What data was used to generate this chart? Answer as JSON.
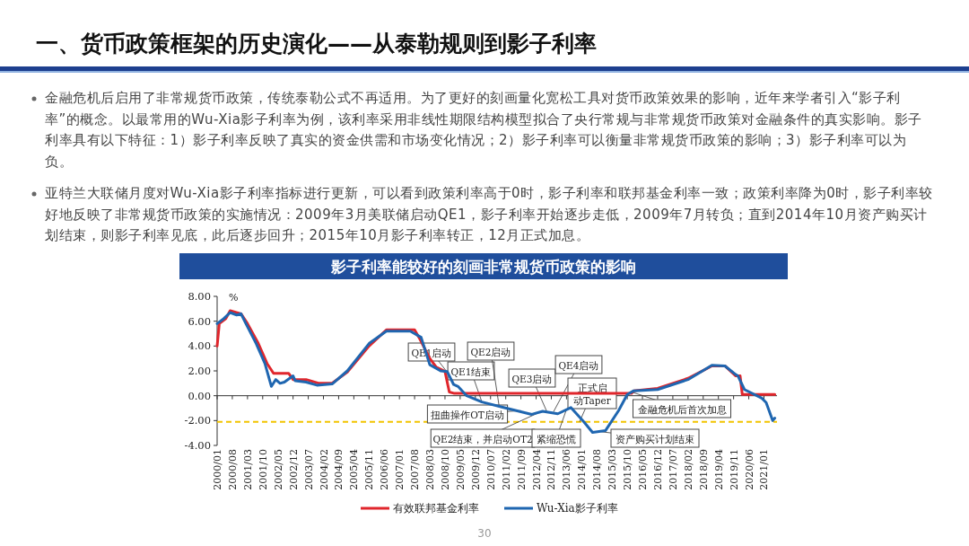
{
  "chart_data": {
    "type": "line",
    "title": "一、货币政策框架的历史演化——从泰勒规则到影子利率",
    "subtitle": "影子利率能较好的刻画非常规货币政策的影响",
    "ylabel": "%",
    "annotations": [
      "金融危机后启用了非常规货币政策，传统泰勒公式不再适用。为了更好的刻画量化宽松工具对货币政策效果的影响，近年来学者引入“影子利率”的概念。以最常用的Wu-Xia影子利率为例，该利率采用非线性期限结构模型拟合了央行常规与非常规货币政策对金融条件的真实影响。影子利率具有以下特征：1）影子利率反映了真实的资金供需和市场变化情况；2）影子利率可以衡量非常规货币政策的影响；3）影子利率可以为负。",
      "亚特兰大联储月度对Wu-Xia影子利率指标进行更新，可以看到政策利率高于0时，影子利率和联邦基金利率一致；政策利率降为0时，影子利率较好地反映了非常规货币政策的实施情况：2009年3月美联储启动QE1，影子利率开始逐步走低，2009年7月转负；直到2014年10月资产购买计划结束，则影子利率见底，此后逐步回升；2015年10月影子利率转正，12月正式加息。",
      "30",
      {
        "text": "QE1启动",
        "x": "2008-11",
        "y": 1.9
      },
      {
        "text": "QE1结束",
        "x": "2010-03",
        "y": -0.5
      },
      {
        "text": "QE2启动",
        "x": "2010-11",
        "y": -0.9
      },
      {
        "text": "QE3启动",
        "x": "2012-09",
        "y": -1.3
      },
      {
        "text": "QE4启动",
        "x": "2012-12",
        "y": -1.3
      },
      {
        "text": "正式启动Taper",
        "x": "2013-12",
        "y": -2.1
      },
      {
        "text": "扭曲操作OT启动",
        "x": "2011-09",
        "y": -1.2
      },
      {
        "text": "QE2结束，并启动OT2",
        "x": "2012-06",
        "y": -1.3
      },
      {
        "text": "紧缩恐慌",
        "x": "2013-06",
        "y": -1.1
      },
      {
        "text": "资产购买计划结束",
        "x": "2014-10",
        "y": -2.9
      },
      {
        "text": "金融危机后首次加息",
        "x": "2015-12",
        "y": 0.3
      }
    ],
    "xlim": [
      "2000-01",
      "2021-07"
    ],
    "xticks": [
      {
        "value": "2000-01",
        "label": "2000/01"
      },
      {
        "value": "2000-08",
        "label": "2000/08"
      },
      {
        "value": "2001-03",
        "label": "2001/03"
      },
      {
        "value": "2001-10",
        "label": "2001/10"
      },
      {
        "value": "2002-05",
        "label": "2002/05"
      },
      {
        "value": "2002-12",
        "label": "2002/12"
      },
      {
        "value": "2003-07",
        "label": "2003/07"
      },
      {
        "value": "2004-02",
        "label": "2004/02"
      },
      {
        "value": "2004-09",
        "label": "2004/09"
      },
      {
        "value": "2005-04",
        "label": "2005/04"
      },
      {
        "value": "2005-11",
        "label": "2005/11"
      },
      {
        "value": "2006-06",
        "label": "2006/06"
      },
      {
        "value": "2007-01",
        "label": "2007/01"
      },
      {
        "value": "2007-08",
        "label": "2007/08"
      },
      {
        "value": "2008-03",
        "label": "2008/03"
      },
      {
        "value": "2008-10",
        "label": "2008/10"
      },
      {
        "value": "2009-05",
        "label": "2009/05"
      },
      {
        "value": "2009-12",
        "label": "2009/12"
      },
      {
        "value": "2010-07",
        "label": "2010/07"
      },
      {
        "value": "2011-02",
        "label": "2011/02"
      },
      {
        "value": "2011-09",
        "label": "2011/09"
      },
      {
        "value": "2012-04",
        "label": "2012/04"
      },
      {
        "value": "2012-11",
        "label": "2012/11"
      },
      {
        "value": "2013-06",
        "label": "2013/06"
      },
      {
        "value": "2014-01",
        "label": "2014/01"
      },
      {
        "value": "2014-08",
        "label": "2014/08"
      },
      {
        "value": "2015-03",
        "label": "2015/03"
      },
      {
        "value": "2015-10",
        "label": "2015/10"
      },
      {
        "value": "2016-05",
        "label": "2016/05"
      },
      {
        "value": "2016-12",
        "label": "2016/12"
      },
      {
        "value": "2017-07",
        "label": "2017/07"
      },
      {
        "value": "2018-02",
        "label": "2018/02"
      },
      {
        "value": "2018-09",
        "label": "2018/09"
      },
      {
        "value": "2019-04",
        "label": "2019/04"
      },
      {
        "value": "2019-11",
        "label": "2019/11"
      },
      {
        "value": "2020-06",
        "label": "2020/06"
      },
      {
        "value": "2021-01",
        "label": "2021/01"
      }
    ],
    "ylim": [
      -4,
      8
    ],
    "yticks": [
      {
        "value": -4,
        "label": "-4.00"
      },
      {
        "value": -2,
        "label": "-2.00"
      },
      {
        "value": 0,
        "label": "0.00"
      },
      {
        "value": 2,
        "label": "2.00"
      },
      {
        "value": 4,
        "label": "4.00"
      },
      {
        "value": 6,
        "label": "6.00"
      },
      {
        "value": 8,
        "label": "8.00"
      }
    ],
    "ref_lines": [
      {
        "axis": "y",
        "value": -2.1,
        "color": "#f2c400",
        "line_style": "dashed"
      }
    ],
    "legend": "bottom",
    "grid": false,
    "line_style": "solid",
    "marker": "none",
    "series": [
      {
        "name": "有效联邦基金利率",
        "color": "#e0262c",
        "x": [
          "2000-01",
          "2000-02",
          "2000-05",
          "2000-07",
          "2000-12",
          "2001-03",
          "2001-08",
          "2001-12",
          "2002-03",
          "2002-10",
          "2002-12",
          "2003-06",
          "2003-12",
          "2004-06",
          "2005-01",
          "2005-11",
          "2006-07",
          "2007-08",
          "2007-10",
          "2008-03",
          "2008-06",
          "2008-10",
          "2008-12",
          "2009-02",
          "2015-12",
          "2016-01",
          "2016-12",
          "2018-02",
          "2019-01",
          "2019-07",
          "2019-12",
          "2020-02",
          "2020-03",
          "2021-06"
        ],
        "values": [
          4.0,
          5.8,
          6.2,
          6.85,
          6.6,
          5.8,
          4.2,
          2.6,
          1.8,
          1.8,
          1.3,
          1.3,
          1.0,
          1.0,
          1.9,
          4.0,
          5.3,
          5.3,
          4.7,
          3.0,
          2.3,
          1.95,
          0.3,
          0.2,
          0.2,
          0.4,
          0.6,
          1.4,
          2.4,
          2.4,
          1.6,
          1.6,
          0.1,
          0.1
        ]
      },
      {
        "name": "Wu-Xia影子利率",
        "color": "#1f66b0",
        "x": [
          "2000-01",
          "2000-04",
          "2000-07",
          "2000-10",
          "2000-12",
          "2001-02",
          "2001-07",
          "2001-11",
          "2002-02",
          "2002-04",
          "2002-06",
          "2002-08",
          "2002-12",
          "2003-01",
          "2003-06",
          "2003-11",
          "2004-06",
          "2005-01",
          "2005-11",
          "2006-07",
          "2007-06",
          "2007-11",
          "2008-03",
          "2008-08",
          "2008-11",
          "2009-02",
          "2009-04",
          "2009-08",
          "2010-03",
          "2011-01",
          "2012-02",
          "2012-07",
          "2013-02",
          "2013-08",
          "2014-02",
          "2014-06",
          "2014-12",
          "2015-06",
          "2015-10",
          "2016-01",
          "2016-12",
          "2018-02",
          "2019-01",
          "2019-07",
          "2019-12",
          "2020-01",
          "2020-04",
          "2020-12",
          "2021-02",
          "2021-05",
          "2021-06"
        ],
        "values": [
          5.8,
          6.2,
          6.7,
          6.5,
          6.6,
          5.9,
          4.2,
          2.6,
          0.75,
          1.3,
          1.0,
          1.1,
          1.6,
          1.2,
          1.1,
          0.85,
          0.95,
          2.0,
          4.2,
          5.2,
          5.2,
          4.7,
          2.5,
          2.0,
          1.95,
          0.9,
          0.75,
          0.0,
          -0.5,
          -0.95,
          -1.5,
          -1.25,
          -1.45,
          -0.95,
          -2.1,
          -2.95,
          -2.8,
          -1.2,
          0.1,
          0.4,
          0.5,
          1.3,
          2.45,
          2.4,
          1.7,
          1.6,
          0.5,
          -0.2,
          -0.55,
          -2.0,
          -1.8
        ]
      }
    ]
  }
}
